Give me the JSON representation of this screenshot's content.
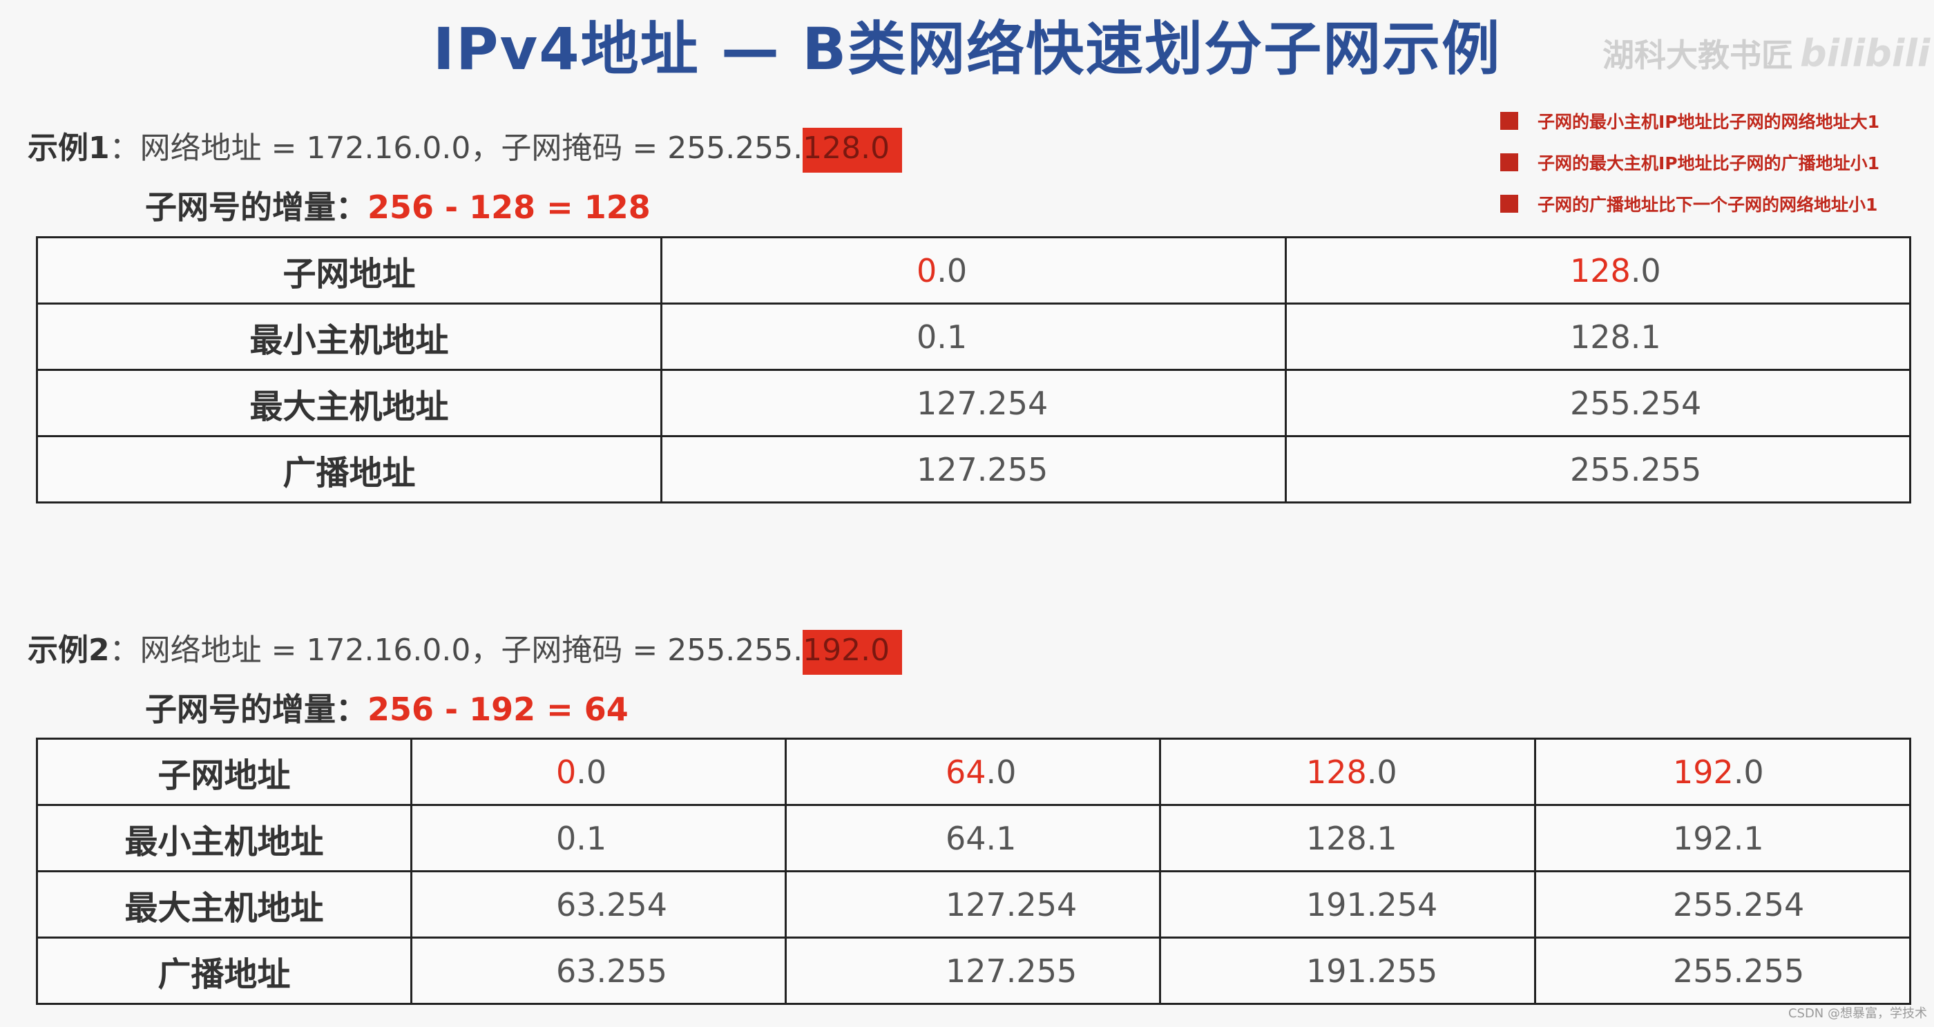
{
  "title": "IPv4地址 — B类网络快速划分子网示例",
  "watermark": {
    "text": "湖科大教书匠",
    "logo": "bilibili"
  },
  "legend": [
    "子网的最小主机IP地址比子网的网络地址大1",
    "子网的最大主机IP地址比子网的广播地址小1",
    "子网的广播地址比下一个子网的网络地址小1"
  ],
  "colors": {
    "title": "#2c4f96",
    "accent": "#e2301f",
    "legend": "#c0281c"
  },
  "example1": {
    "label": "示例1",
    "colon": "：",
    "text": "网络地址 = 172.16.0.0，子网掩码 = 255.255.",
    "mask_highlight": "128.0",
    "increment_label": "子网号的增量：",
    "increment_value": "256 - 128 = 128",
    "row_headers": [
      "子网地址",
      "最小主机地址",
      "最大主机地址",
      "广播地址"
    ],
    "columns": [
      {
        "subnet_red": "0",
        "subnet_rest": ".0",
        "min_host": "0.1",
        "max_host": "127.254",
        "broadcast": "127.255"
      },
      {
        "subnet_red": "128",
        "subnet_rest": ".0",
        "min_host": "128.1",
        "max_host": "255.254",
        "broadcast": "255.255"
      }
    ]
  },
  "example2": {
    "label": "示例2",
    "colon": "：",
    "text": "网络地址 = 172.16.0.0，子网掩码 = 255.255.",
    "mask_highlight": "192.0",
    "increment_label": "子网号的增量：",
    "increment_value": "256 - 192 = 64",
    "row_headers": [
      "子网地址",
      "最小主机地址",
      "最大主机地址",
      "广播地址"
    ],
    "columns": [
      {
        "subnet_red": "0",
        "subnet_rest": ".0",
        "min_host": "0.1",
        "max_host": "63.254",
        "broadcast": "63.255"
      },
      {
        "subnet_red": "64",
        "subnet_rest": ".0",
        "min_host": "64.1",
        "max_host": "127.254",
        "broadcast": "127.255"
      },
      {
        "subnet_red": "128",
        "subnet_rest": ".0",
        "min_host": "128.1",
        "max_host": "191.254",
        "broadcast": "191.255"
      },
      {
        "subnet_red": "192",
        "subnet_rest": ".0",
        "min_host": "192.1",
        "max_host": "255.254",
        "broadcast": "255.255"
      }
    ]
  },
  "footer_credit": "CSDN @想暴富，学技术"
}
